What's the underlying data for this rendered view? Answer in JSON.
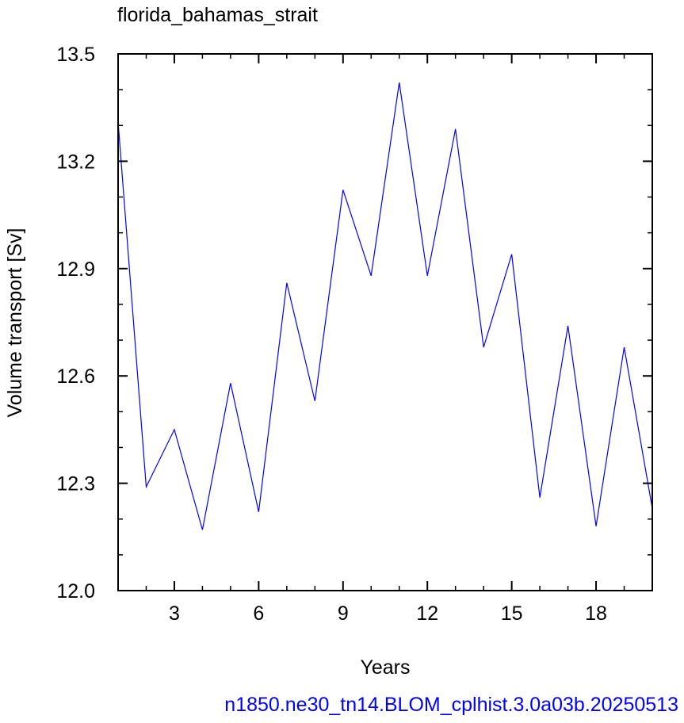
{
  "chart_data": {
    "type": "line",
    "title": "florida_bahamas_strait",
    "xlabel": "Years",
    "ylabel": "Volume transport [Sv]",
    "footer": "n1850.ne30_tn14.BLOM_cplhist.3.0a03b.20250513",
    "xlim": [
      1,
      20
    ],
    "ylim": [
      12.0,
      13.5
    ],
    "x_ticks": [
      3,
      6,
      9,
      12,
      15,
      18
    ],
    "x_tick_labels": [
      "3",
      "6",
      "9",
      "12",
      "15",
      "18"
    ],
    "y_ticks": [
      12.0,
      12.3,
      12.6,
      12.9,
      13.2,
      13.5
    ],
    "y_tick_labels": [
      "12.0",
      "12.3",
      "12.6",
      "12.9",
      "13.2",
      "13.5"
    ],
    "grid": false,
    "series": [
      {
        "color": "#0000ff",
        "x": [
          1,
          2,
          3,
          4,
          5,
          6,
          7,
          8,
          9,
          10,
          11,
          12,
          13,
          14,
          15,
          16,
          17,
          18,
          19,
          20
        ],
        "values": [
          13.31,
          12.29,
          12.45,
          12.17,
          12.58,
          12.22,
          12.86,
          12.53,
          13.12,
          12.88,
          13.42,
          12.88,
          13.29,
          12.68,
          12.94,
          12.26,
          12.74,
          12.18,
          12.68,
          12.23
        ]
      }
    ]
  }
}
